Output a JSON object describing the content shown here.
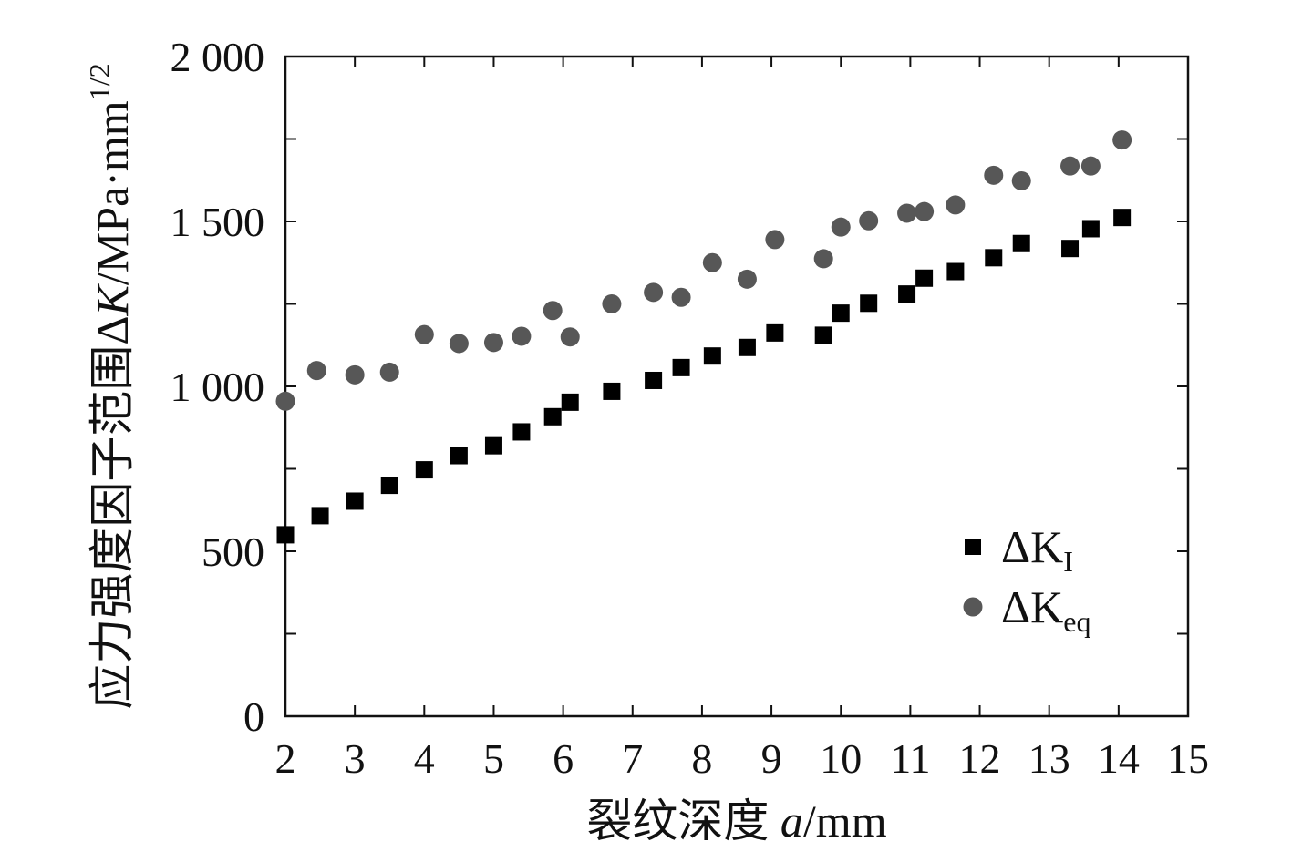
{
  "chart_data": {
    "type": "scatter",
    "xlabel_prefix": "裂纹深度 ",
    "xlabel_var": "a",
    "xlabel_unit": "/mm",
    "ylabel_prefix": "应力强度因子范围Δ",
    "ylabel_var": "K",
    "ylabel_unit": "/MPa·mm",
    "ylabel_sup": "1/2",
    "xlim": [
      2,
      15
    ],
    "ylim": [
      0,
      2000
    ],
    "x_ticks": [
      2,
      3,
      4,
      5,
      6,
      7,
      8,
      9,
      10,
      11,
      12,
      13,
      14,
      15
    ],
    "x_tick_labels": [
      "2",
      "3",
      "4",
      "5",
      "6",
      "7",
      "8",
      "9",
      "10",
      "11",
      "12",
      "13",
      "14",
      "15"
    ],
    "y_ticks": [
      0,
      500,
      1000,
      1500,
      2000
    ],
    "y_tick_labels": [
      "0",
      "500",
      "1 000",
      "1 500",
      "2 000"
    ],
    "y_minor_ticks": [
      250,
      750,
      1250,
      1750
    ],
    "legend_position": "right-lower",
    "series": [
      {
        "name": "ΔK",
        "name_sub": "I",
        "marker": "square",
        "color": "#000000",
        "x": [
          2.0,
          2.5,
          3.0,
          3.5,
          4.0,
          4.5,
          5.0,
          5.4,
          5.85,
          6.1,
          6.7,
          7.3,
          7.7,
          8.15,
          8.65,
          9.05,
          9.75,
          10.0,
          10.4,
          10.95,
          11.2,
          11.65,
          12.2,
          12.6,
          13.3,
          13.6,
          14.05
        ],
        "y": [
          550,
          608,
          652,
          700,
          747,
          790,
          820,
          862,
          908,
          952,
          985,
          1018,
          1057,
          1092,
          1118,
          1162,
          1155,
          1222,
          1252,
          1280,
          1328,
          1348,
          1390,
          1433,
          1418,
          1478,
          1512
        ]
      },
      {
        "name": "ΔK",
        "name_sub": "eq",
        "marker": "circle",
        "color": "#575757",
        "x": [
          2.0,
          2.45,
          3.0,
          3.5,
          4.0,
          4.5,
          5.0,
          5.4,
          5.85,
          6.1,
          6.7,
          7.3,
          7.7,
          8.15,
          8.65,
          9.05,
          9.75,
          10.0,
          10.4,
          10.95,
          11.2,
          11.65,
          12.2,
          12.6,
          13.3,
          13.6,
          14.05
        ],
        "y": [
          955,
          1048,
          1035,
          1043,
          1157,
          1130,
          1133,
          1152,
          1230,
          1150,
          1250,
          1285,
          1270,
          1375,
          1325,
          1445,
          1387,
          1483,
          1502,
          1525,
          1530,
          1550,
          1640,
          1623,
          1668,
          1668,
          1747
        ]
      }
    ]
  }
}
